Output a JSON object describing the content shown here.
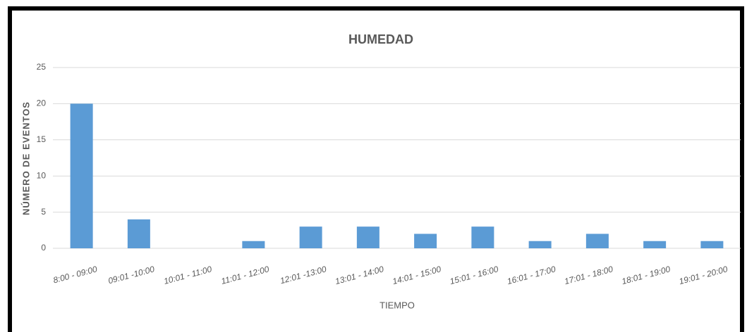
{
  "chart_data": {
    "type": "bar",
    "title": "HUMEDAD",
    "x_label": "TIEMPO",
    "y_label": "NÚMERO DE EVENTOS",
    "categories": [
      "8:00 - 09:00",
      "09:01 -10:00",
      "10:01 - 11:00",
      "11:01 - 12:00",
      "12:01 -13:00",
      "13:01 - 14:00",
      "14:01 - 15:00",
      "15:01 - 16:00",
      "16:01 - 17:00",
      "17:01 - 18:00",
      "18:01 - 19:00",
      "19:01 - 20:00"
    ],
    "values": [
      20,
      4,
      0,
      1,
      3,
      3,
      2,
      3,
      1,
      2,
      1,
      1
    ],
    "color": "#5b9bd5",
    "ylim": [
      0,
      25
    ],
    "yticks": [
      0,
      5,
      10,
      15,
      20,
      25
    ],
    "grid": true
  }
}
